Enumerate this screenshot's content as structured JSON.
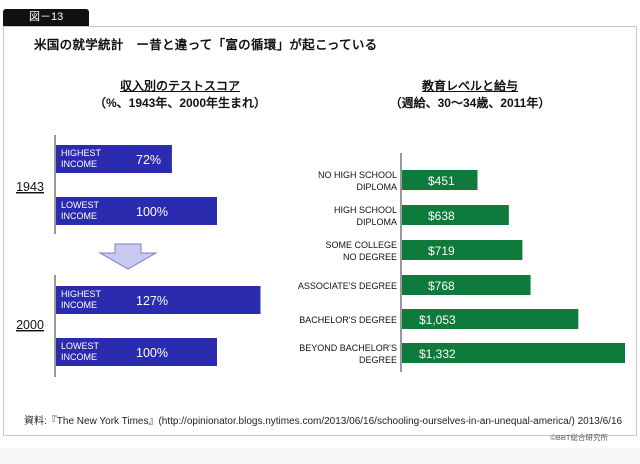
{
  "figure_label": "図－13",
  "main_title": "米国の就学統計　ー昔と違って「富の循環」が起こっている",
  "source": "資料:『The New York Times』(http://opinionator.blogs.nytimes.com/2013/06/16/schooling-ourselves-in-an-unequal-america/) 2013/6/16",
  "copyright": "©BBT総合研究所",
  "colors": {
    "left_bar": "#2b2bb0",
    "right_bar": "#0e7a3c",
    "arrow_fill": "#c8caf0",
    "arrow_stroke": "#7a7fc8",
    "axis": "#555555",
    "bar_text": "#ffffff"
  },
  "chart_data": [
    {
      "type": "bar",
      "orientation": "horizontal",
      "title": "収入別のテストスコア",
      "subtitle": "（%、1943年、2000年生まれ）",
      "groups": [
        {
          "label": "1943",
          "bars": [
            {
              "label": "HIGHEST INCOME",
              "label_lines": [
                "HIGHEST",
                "INCOME"
              ],
              "value": 72,
              "value_label": "72%"
            },
            {
              "label": "LOWEST INCOME",
              "label_lines": [
                "LOWEST",
                "INCOME"
              ],
              "value": 100,
              "value_label": "100%"
            }
          ]
        },
        {
          "label": "2000",
          "bars": [
            {
              "label": "HIGHEST INCOME",
              "label_lines": [
                "HIGHEST",
                "INCOME"
              ],
              "value": 127,
              "value_label": "127%"
            },
            {
              "label": "LOWEST INCOME",
              "label_lines": [
                "LOWEST",
                "INCOME"
              ],
              "value": 100,
              "value_label": "100%"
            }
          ]
        }
      ],
      "unit": "%",
      "xlim": [
        0,
        127
      ],
      "grid": false,
      "annotation": "down-arrow between 1943 and 2000 groups"
    },
    {
      "type": "bar",
      "orientation": "horizontal",
      "title": "教育レベルと給与",
      "subtitle": "（週給、30～34歳、2011年）",
      "categories": [
        "NO HIGH SCHOOL DIPLOMA",
        "HIGH SCHOOL DIPLOMA",
        "SOME COLLEGE NO DEGREE",
        "ASSOCIATE'S DEGREE",
        "BACHELOR'S DEGREE",
        "BEYOND BACHELOR'S DEGREE"
      ],
      "category_lines": [
        [
          "NO HIGH SCHOOL",
          "DIPLOMA"
        ],
        [
          "HIGH SCHOOL",
          "DIPLOMA"
        ],
        [
          "SOME COLLEGE",
          "NO DEGREE"
        ],
        [
          "ASSOCIATE'S DEGREE"
        ],
        [
          "BACHELOR'S DEGREE"
        ],
        [
          "BEYOND BACHELOR'S",
          "DEGREE"
        ]
      ],
      "values": [
        451,
        638,
        719,
        768,
        1053,
        1332
      ],
      "value_labels": [
        "$451",
        "$638",
        "$719",
        "$768",
        "$1,053",
        "$1,332"
      ],
      "unit": "USD per week",
      "xlim": [
        0,
        1332
      ],
      "grid": false
    }
  ]
}
